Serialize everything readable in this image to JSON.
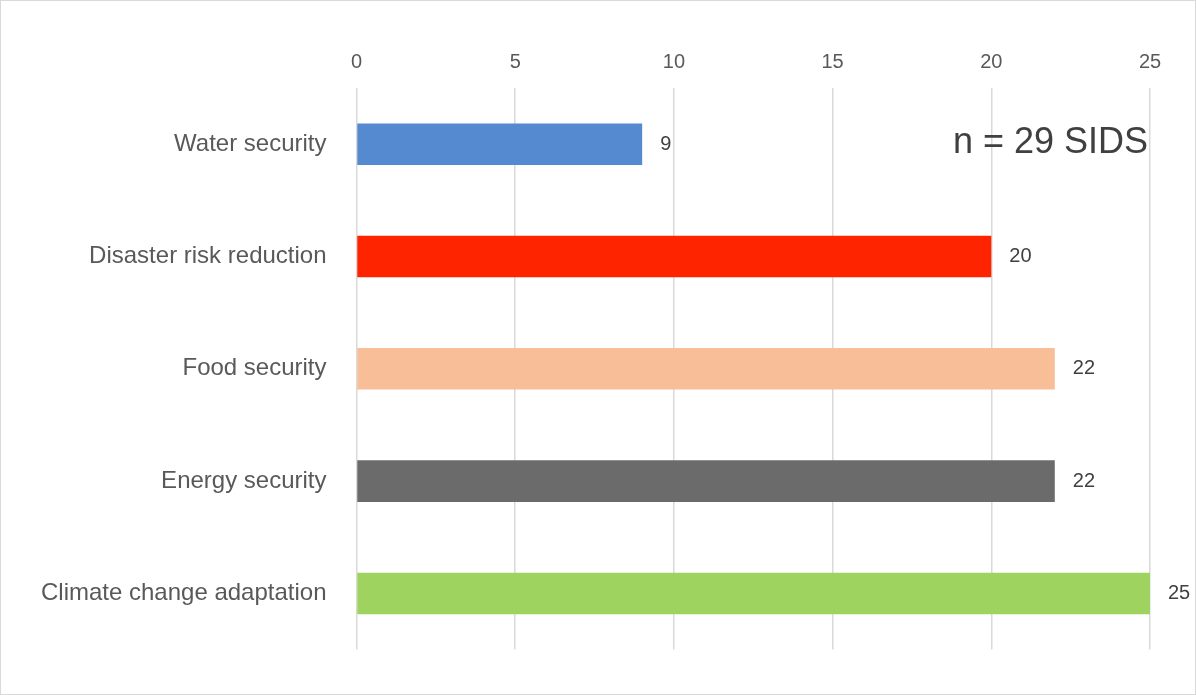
{
  "chart_data": {
    "type": "bar",
    "orientation": "horizontal",
    "categories": [
      "Water security",
      "Disaster risk reduction",
      "Food security",
      "Energy security",
      "Climate change adaptation"
    ],
    "values": [
      9,
      20,
      22,
      22,
      25
    ],
    "colors": [
      "#5589d0",
      "#ff2400",
      "#f7be97",
      "#6b6b6b",
      "#9fd35f"
    ],
    "xlim": [
      0,
      25
    ],
    "xticks": [
      0,
      5,
      10,
      15,
      20,
      25
    ],
    "grid": "x",
    "legend": false,
    "data_labels": true,
    "annotations": [
      "n = 29 SIDS"
    ]
  }
}
